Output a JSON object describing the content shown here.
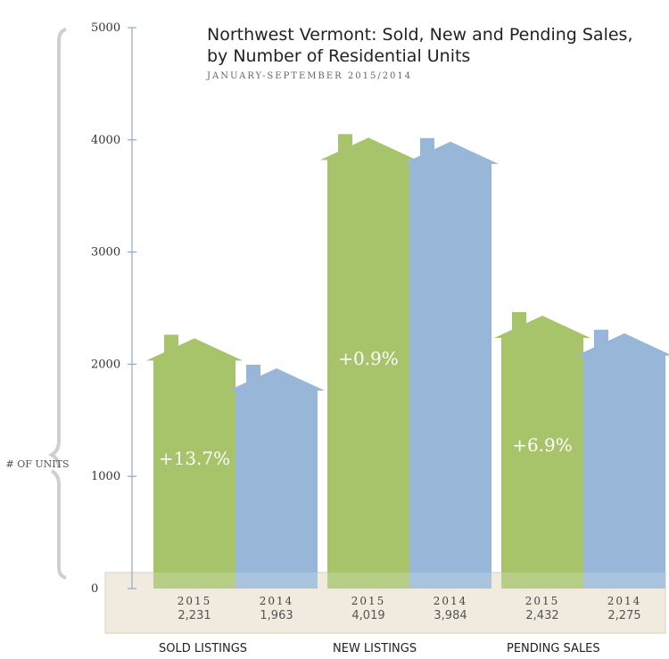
{
  "chart_data": {
    "type": "bar",
    "title": "Northwest Vermont: Sold, New and Pending Sales,",
    "title_line2": "by Number of Residential Units",
    "subtitle": "JANUARY-SEPTEMBER 2015/2014",
    "ylabel": "# OF UNITS",
    "ylim": [
      0,
      5000
    ],
    "yticks": [
      "0",
      "1000",
      "2000",
      "3000",
      "4000",
      "5000"
    ],
    "categories": [
      "SOLD LISTINGS",
      "NEW LISTINGS",
      "PENDING SALES"
    ],
    "series": [
      {
        "name": "2015",
        "values": [
          2231,
          4019,
          2432
        ],
        "labels": [
          "2,231",
          "4,019",
          "2,432"
        ],
        "color": "#a7c46b"
      },
      {
        "name": "2014",
        "values": [
          1963,
          3984,
          2275
        ],
        "labels": [
          "1,963",
          "3,984",
          "2,275"
        ],
        "color": "#98b6d8"
      }
    ],
    "changes": [
      "+13.7%",
      "+0.9%",
      "+6.9%"
    ],
    "grid": false,
    "legend": "none"
  },
  "colors": {
    "green": "#a7c46b",
    "blue": "#98b6d8",
    "axis": "#8fa9c7",
    "base_band": "#f1ebdf",
    "bracket": "#cfcfcf",
    "text": "#333333"
  }
}
